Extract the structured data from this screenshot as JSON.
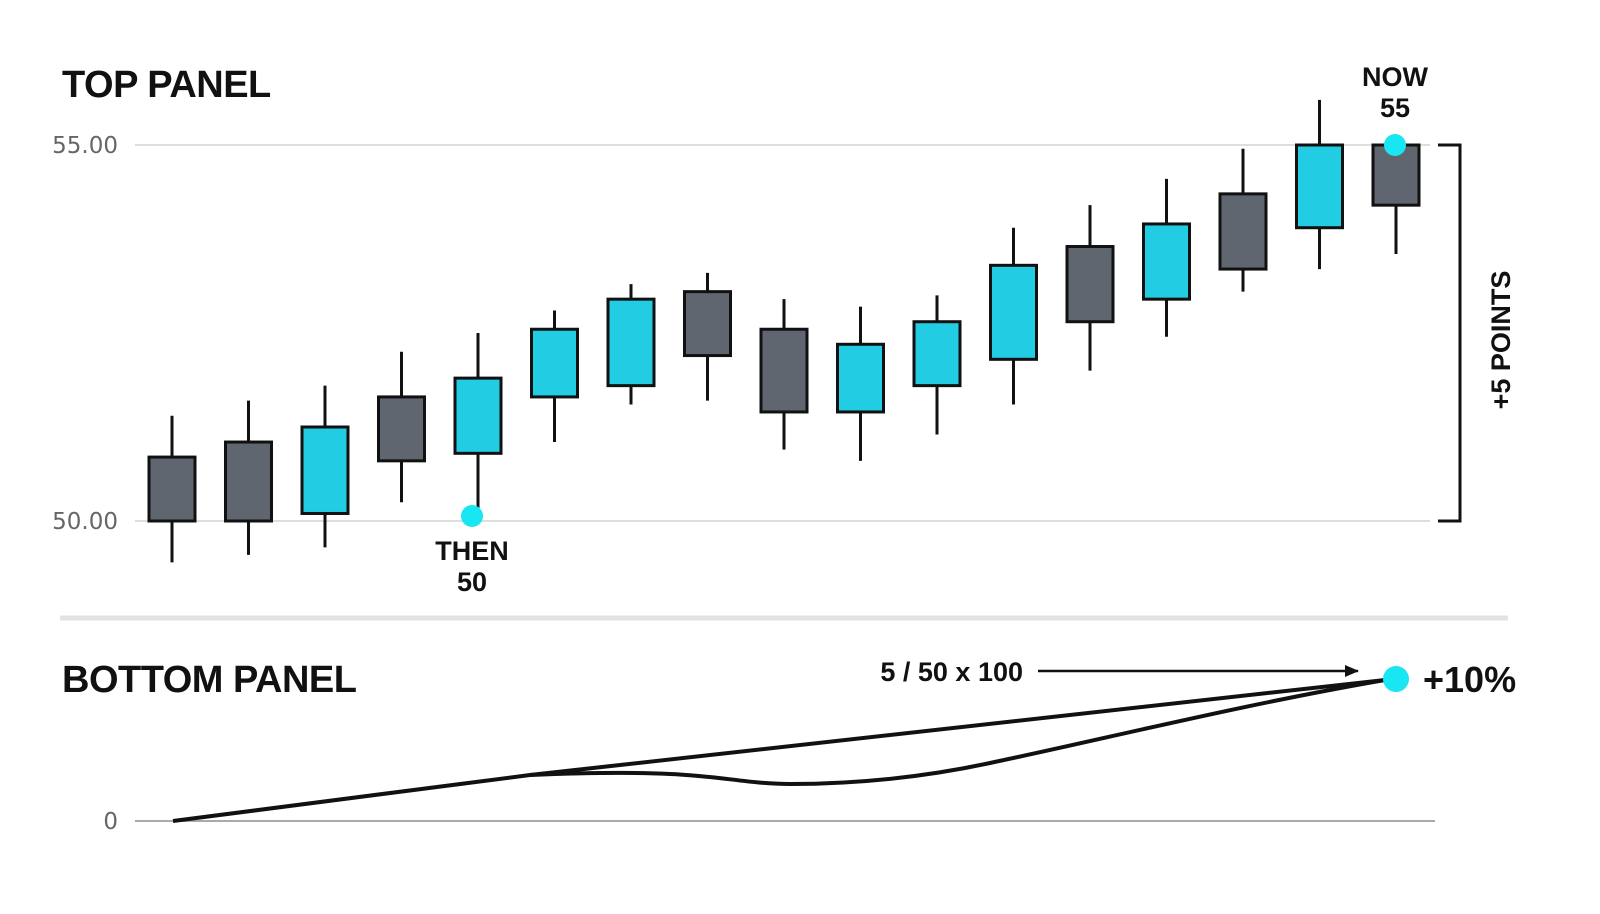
{
  "colors": {
    "up": "#22cce3",
    "down": "#5f6670",
    "outline": "#111111",
    "marker": "#18e6f2",
    "grid": "#dedede",
    "divider": "#e2e2e2",
    "axis_text": "#666666"
  },
  "top_panel": {
    "title": "TOP PANEL",
    "y_ticks": [
      "55.00",
      "50.00"
    ],
    "then_label": [
      "THEN",
      "50"
    ],
    "now_label": [
      "NOW",
      "55"
    ],
    "bracket_label": "+5 POINTS"
  },
  "bottom_panel": {
    "title": "BOTTOM PANEL",
    "y_tick": "0",
    "formula": "5 / 50 x 100",
    "result": "+10%"
  },
  "chart_data": [
    {
      "type": "candlestick",
      "title": "TOP PANEL",
      "ylim": [
        50,
        55
      ],
      "y_ticks": [
        50,
        55
      ],
      "grid": true,
      "candles": [
        {
          "o": 50.85,
          "h": 51.4,
          "l": 49.45,
          "c": 50.0
        },
        {
          "o": 51.05,
          "h": 51.6,
          "l": 49.55,
          "c": 50.0
        },
        {
          "o": 50.1,
          "h": 51.8,
          "l": 49.65,
          "c": 51.25
        },
        {
          "o": 51.65,
          "h": 52.25,
          "l": 50.25,
          "c": 50.8
        },
        {
          "o": 50.9,
          "h": 52.5,
          "l": 50.0,
          "c": 51.9
        },
        {
          "o": 51.65,
          "h": 52.8,
          "l": 51.05,
          "c": 52.55
        },
        {
          "o": 51.8,
          "h": 53.15,
          "l": 51.55,
          "c": 52.95
        },
        {
          "o": 53.05,
          "h": 53.3,
          "l": 51.6,
          "c": 52.2
        },
        {
          "o": 52.55,
          "h": 52.95,
          "l": 50.95,
          "c": 51.45
        },
        {
          "o": 51.45,
          "h": 52.85,
          "l": 50.8,
          "c": 52.35
        },
        {
          "o": 51.8,
          "h": 53.0,
          "l": 51.15,
          "c": 52.65
        },
        {
          "o": 52.15,
          "h": 53.9,
          "l": 51.55,
          "c": 53.4
        },
        {
          "o": 53.65,
          "h": 54.2,
          "l": 52.0,
          "c": 52.65
        },
        {
          "o": 52.95,
          "h": 54.55,
          "l": 52.45,
          "c": 53.95
        },
        {
          "o": 54.35,
          "h": 54.95,
          "l": 53.05,
          "c": 53.35
        },
        {
          "o": 53.9,
          "h": 55.6,
          "l": 53.35,
          "c": 55.0
        },
        {
          "o": 55.0,
          "h": 55.0,
          "l": 53.55,
          "c": 54.2
        }
      ],
      "markers": [
        {
          "candle": 4,
          "value": 50,
          "label": "THEN 50"
        },
        {
          "candle": 16,
          "value": 55,
          "label": "NOW 55"
        }
      ],
      "annotation": "+5 POINTS"
    },
    {
      "type": "line",
      "title": "BOTTOM PANEL",
      "y_ticks": [
        0
      ],
      "grid": false,
      "lines": [
        {
          "x": [
            0,
            4.7,
            16.2
          ],
          "y": [
            0,
            5.3,
            10
          ]
        },
        {
          "x": [
            0,
            4.7,
            6.5,
            8.2,
            10.0,
            12.0,
            14.0,
            16.2
          ],
          "y": [
            0,
            5.3,
            5.3,
            4.1,
            4.5,
            6.1,
            8.2,
            10
          ]
        }
      ],
      "end_marker": {
        "x": 16.2,
        "y": 10,
        "label": "+10%"
      },
      "annotation": "5 / 50 x 100"
    }
  ]
}
